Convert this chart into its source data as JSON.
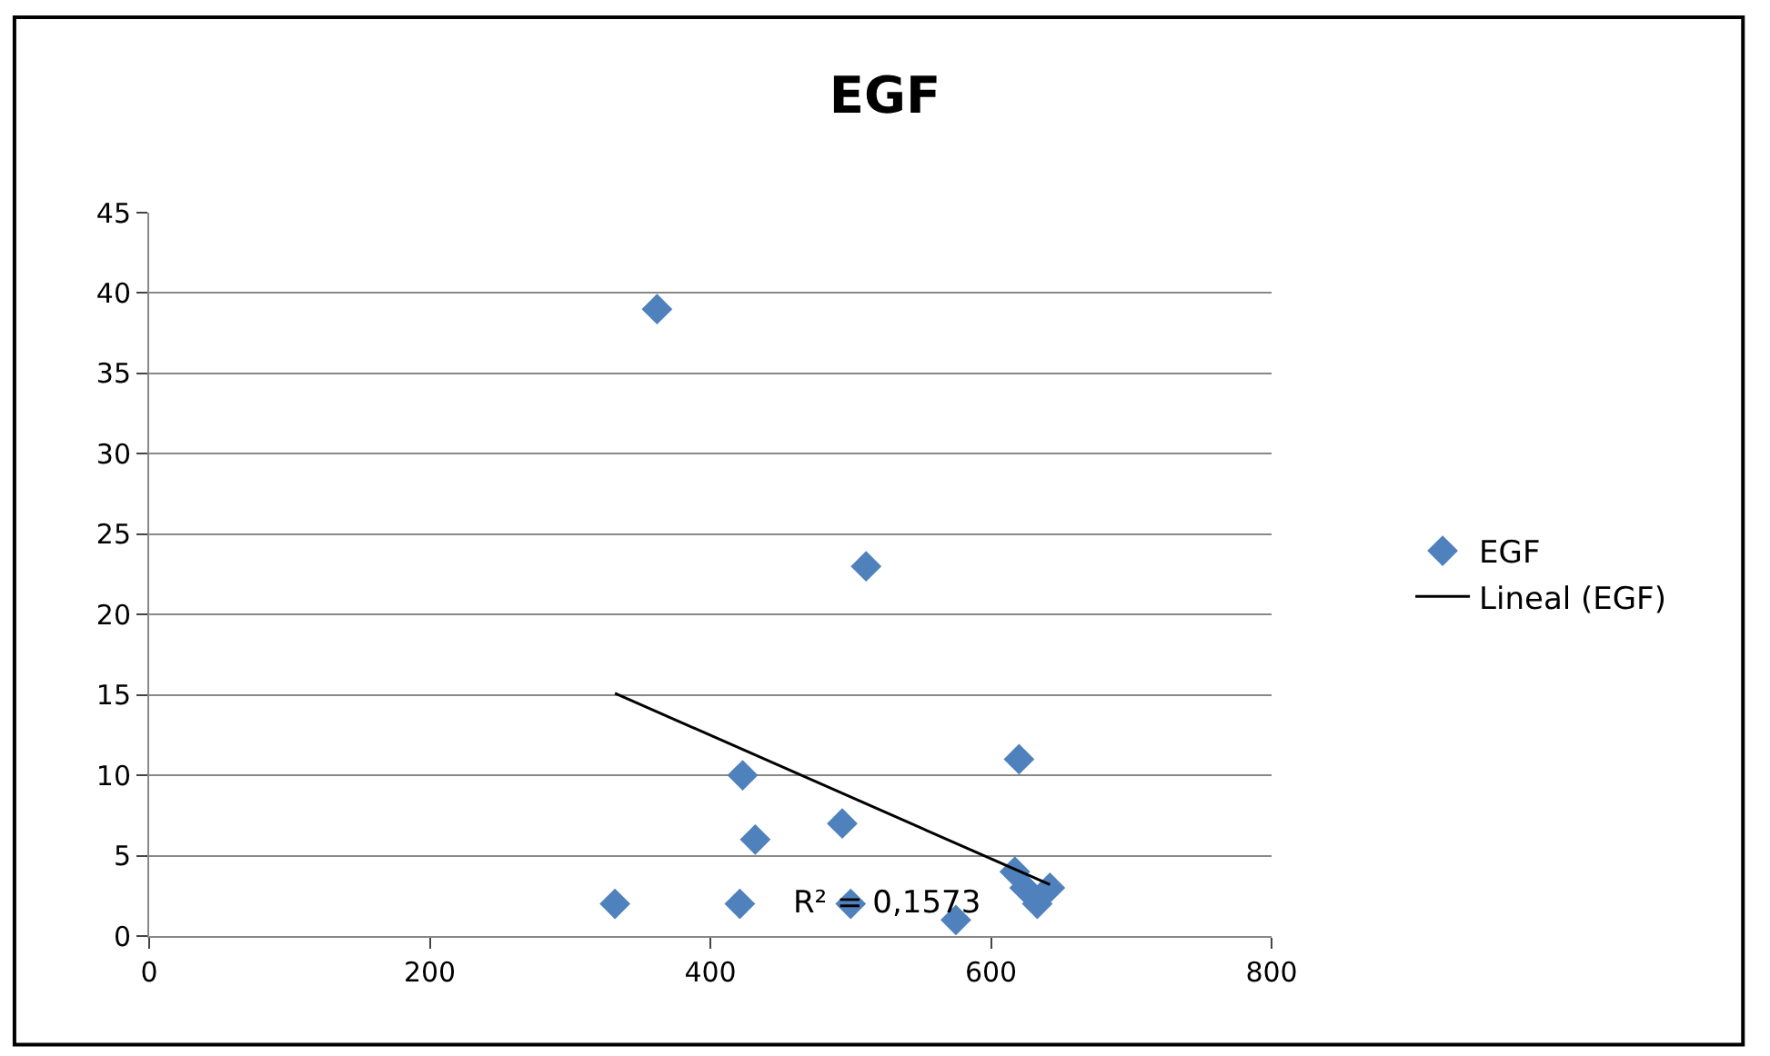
{
  "chart_data": {
    "type": "scatter",
    "title": "EGF",
    "xlim": [
      0,
      800
    ],
    "xticks": [
      0,
      200,
      400,
      600,
      800
    ],
    "ylim": [
      0,
      45
    ],
    "yticks": [
      0,
      5,
      10,
      15,
      20,
      25,
      30,
      35,
      40,
      45
    ],
    "grid": "y",
    "legend": "right",
    "series": [
      {
        "name": "EGF",
        "color": "#4f81bd",
        "marker": "diamond",
        "x": [
          332,
          362,
          421,
          423,
          432,
          494,
          500,
          511,
          575,
          617,
          620,
          624,
          633,
          642
        ],
        "values": [
          2,
          39,
          2,
          10,
          6,
          7,
          2,
          23,
          1,
          4,
          11,
          3,
          2,
          3
        ]
      },
      {
        "name": "Lineal (EGF)",
        "type": "line",
        "color": "#000000",
        "x": [
          332,
          642
        ],
        "values": [
          15.1,
          3.2
        ]
      }
    ],
    "annotations": [
      "R² = 0,1573"
    ]
  }
}
